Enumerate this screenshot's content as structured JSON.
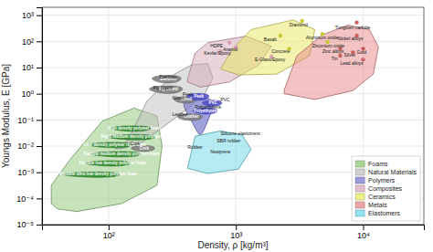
{
  "chart_data": {
    "type": "region_map",
    "xlabel": "Density, ρ [kg/m³]",
    "ylabel": "Youngs Modulus, E [GPa]",
    "log": true,
    "grid": true,
    "legend": "lower right",
    "xlim": [
      30,
      30000
    ],
    "ylim": [
      1e-05,
      2000
    ],
    "xticks": [
      {
        "value": 100,
        "label": "10²"
      },
      {
        "value": 1000,
        "label": "10³"
      },
      {
        "value": 10000,
        "label": "10⁴"
      }
    ],
    "yticks": [
      {
        "value": 1e-05,
        "label": "10⁻⁵"
      },
      {
        "value": 0.0001,
        "label": "10⁻⁴"
      },
      {
        "value": 0.001,
        "label": "10⁻³"
      },
      {
        "value": 0.01,
        "label": "10⁻²"
      },
      {
        "value": 0.1,
        "label": "10⁻¹"
      },
      {
        "value": 1,
        "label": "10⁰"
      },
      {
        "value": 10,
        "label": "10¹"
      },
      {
        "value": 100,
        "label": "10²"
      },
      {
        "value": 1000,
        "label": "10³"
      }
    ],
    "series": [
      {
        "name": "Foams",
        "type": "polygon",
        "color": "#90c878",
        "x": [
          35.481,
          39.811,
          56.234,
          125.89,
          239.88,
          263.03,
          239.88,
          158.49,
          89.125,
          50.119,
          35.481
        ],
        "y": [
          6.3096e-05,
          3.9811e-05,
          3.1623e-05,
          6.3096e-05,
          0.00031623,
          0.01,
          0.14125,
          0.28184,
          0.089125,
          0.0031623,
          0.00031623
        ]
      },
      {
        "name": "Natural Materials",
        "type": "polygon",
        "color": "#c0c0c0",
        "x": [
          112.2,
          141.25,
          199.53,
          316.23,
          446.68,
          602.56,
          660.69,
          562.34,
          398.11,
          263.03,
          177.83,
          125.89,
          112.2
        ],
        "y": [
          0.0079433,
          0.015849,
          0.50119,
          5.0119,
          12.589,
          14.125,
          3.9811,
          0.89125,
          0.22387,
          0.050119,
          0.012589,
          0.0079433,
          0.0079433
        ]
      },
      {
        "name": "Polymers",
        "type": "ellipse",
        "color": "#7878cc",
        "center_x": 524.81,
        "center_y": 0.38019,
        "width": 268.7,
        "height": 0.705
      },
      {
        "name": "Composites",
        "type": "polygon",
        "color": "#d8a8b8",
        "x": [
          416.87,
          478.63,
          602.56,
          1202.3,
          1905.5,
          1513.6,
          891.25,
          524.81,
          416.87
        ],
        "y": [
          3.5481,
          35.481,
          89.125,
          158.49,
          66.069,
          12.589,
          2.8184,
          1.7783,
          2.8184
        ]
      },
      {
        "name": "Ceramics",
        "type": "polygon",
        "color": "#e8e860",
        "x": [
          758.58,
          954.99,
          1318.3,
          2818.4,
          4168.7,
          3801.9,
          2089.3,
          1047.1,
          758.58
        ],
        "y": [
          8.9125,
          56.234,
          281.84,
          660.69,
          281.84,
          28.184,
          5.6234,
          5.2481,
          8.9125
        ]
      },
      {
        "name": "Metals",
        "type": "polygon",
        "color": "#e88888",
        "x": [
          2398.8,
          3020.0,
          4786.3,
          7585.8,
          11220,
          13183,
          12023,
          8317.6,
          4168.7,
          2398.8
        ],
        "y": [
          1.4125,
          28.184,
          177.83,
          416.87,
          281.84,
          60.256,
          5.6234,
          1.3183,
          0.60256,
          1
        ]
      },
      {
        "name": "Elastomers",
        "type": "polygon",
        "color": "#70d8e8",
        "x": [
          416.87,
          478.63,
          758.58,
          1122.0,
          1318.3,
          1047.1,
          602.56,
          416.87
        ],
        "y": [
          0.0014125,
          0.023988,
          0.038019,
          0.026303,
          0.0075858,
          0.0013183,
          0.00089125,
          0.0014125
        ]
      }
    ],
    "ellipse_groups": [
      {
        "color": "#2a8a2a",
        "ellipses": [
          {
            "label": "High density polymer foam",
            "center_x": 158.49,
            "center_y": 0.047863,
            "width": 111.67,
            "height": 0.022237
          },
          {
            "label": "Rigid medium density polymer foam",
            "center_x": 165.96,
            "center_y": 0.022387,
            "width": 133.27,
            "height": 0.010401
          },
          {
            "label": "Low density polymer rigid foam",
            "center_x": 112.2,
            "center_y": 0.01122,
            "width": 84.555,
            "height": 0.0052125
          },
          {
            "label": "Flexible medium density polymer foam",
            "center_x": 125.89,
            "center_y": 0.0050119,
            "width": 107.37,
            "height": 0.0023285
          },
          {
            "label": "Flexible low density polymer foam",
            "center_x": 107.15,
            "center_y": 0.0022387,
            "width": 83.39,
            "height": 0.0010401
          },
          {
            "label": "Flexible ultra low density polymer foam",
            "center_x": 83.176,
            "center_y": 0.00083176,
            "width": 79.349,
            "height": 0.00038641
          }
        ]
      },
      {
        "color": "#808080",
        "ellipses": [
          {
            "label": "Cork",
            "center_x": 190.55,
            "center_y": 0.0083176,
            "width": 79.54,
            "height": 0.0042585
          },
          {
            "label": "Bamboo",
            "center_x": 295.12,
            "center_y": 3.8019,
            "width": 151.1,
            "height": 2.4939
          },
          {
            "label": "Ply board",
            "center_x": 295.12,
            "center_y": 1.5136,
            "width": 172.25,
            "height": 0.9928
          },
          {
            "label": "Wood",
            "center_x": 407.38,
            "center_y": 0.60256,
            "width": 160.49,
            "height": 0.33724
          },
          {
            "label": "Leather",
            "center_x": 446.68,
            "center_y": 0.13183,
            "width": 196.98,
            "height": 0.07378
          }
        ]
      },
      {
        "color": "#5050cc",
        "ellipses": [
          {
            "label": "Peek",
            "center_x": 512.86,
            "center_y": 0.79433,
            "width": 202.04,
            "height": 0.46364
          },
          {
            "label": "PVC",
            "center_x": 660.69,
            "center_y": 0.44668,
            "width": 229.34,
            "height": 0.2287
          },
          {
            "label": "Polyethylene",
            "center_x": 588.84,
            "center_y": 0.22387,
            "width": 259.67,
            "height": 0.11462
          }
        ]
      }
    ],
    "points": {
      "x": [
        3311.3,
        8912.5,
        4786.3,
        8912.5,
        5248.1,
        2238.7,
        2630.3,
        6606.9,
        10000,
        6606.9,
        8317.6,
        1905.5,
        10000,
        891.25,
        1000,
        758.58
      ],
      "y": [
        602.56,
        524.81,
        190.55,
        165.96,
        95.499,
        165.96,
        52.481,
        52.481,
        52.481,
        28.184,
        38.019,
        26.303,
        19.953,
        89.125,
        60.256,
        41.687
      ],
      "colors": [
        "#c8c830",
        "#cc6060",
        "#c8c830",
        "#cc6060",
        "#c8c830",
        "#c8c830",
        "#c8c830",
        "#cc6060",
        "#cc6060",
        "#cc6060",
        "#cc6060",
        "#d4a0b8",
        "#cc6060",
        "#d4a0b8",
        "#d4a0b8",
        "#d4a0b8"
      ]
    },
    "annotations": [
      {
        "text": "Diamond",
        "x": 2630.3,
        "y": 446.68
      },
      {
        "text": "Tungsten carbide",
        "x": 6025.6,
        "y": 354.81
      },
      {
        "text": "Aluminum oxide",
        "x": 3548.1,
        "y": 141.25
      },
      {
        "text": "Nickel alloys",
        "x": 6309.6,
        "y": 125.89
      },
      {
        "text": "Zirconium oxide",
        "x": 3981.1,
        "y": 70.795
      },
      {
        "text": "Zinc alloys",
        "x": 4786.3,
        "y": 41.687
      },
      {
        "text": "Gold",
        "x": 8912.5,
        "y": 39.811
      },
      {
        "text": "Basalt",
        "x": 1659.6,
        "y": 120.23
      },
      {
        "text": "Concrete",
        "x": 1905.5,
        "y": 41.687
      },
      {
        "text": "Tin",
        "x": 5623.4,
        "y": 22.387
      },
      {
        "text": "Silver",
        "x": 7079.5,
        "y": 31.623
      },
      {
        "text": "E-Glass/Epoxy",
        "x": 1412.5,
        "y": 20.893
      },
      {
        "text": "Lead alloys",
        "x": 6606.9,
        "y": 15.136
      },
      {
        "text": "HDPE",
        "x": 630.96,
        "y": 70.795
      },
      {
        "text": "Aramid",
        "x": 794.33,
        "y": 50.119
      },
      {
        "text": "Kevlar/Epoxy",
        "x": 562.34,
        "y": 35.481
      },
      {
        "text": "Bamboo",
        "x": 251.19,
        "y": 4.4668
      },
      {
        "text": "Ply board",
        "x": 223.87,
        "y": 1.6596
      },
      {
        "text": "Wood",
        "x": 316.23,
        "y": 0.70795
      },
      {
        "text": "Peek",
        "x": 380.19,
        "y": 0.95499
      },
      {
        "text": "PVC",
        "x": 758.58,
        "y": 0.60256
      },
      {
        "text": "Polyethylene",
        "x": 478.63,
        "y": 0.31623
      },
      {
        "text": "Leather",
        "x": 316.23,
        "y": 0.16596
      },
      {
        "text": "Cork",
        "x": 147.91,
        "y": 0.012589
      },
      {
        "text": "Silicone elastomers",
        "x": 758.58,
        "y": 0.031623
      },
      {
        "text": "SBR rubber",
        "x": 707.95,
        "y": 0.015849
      },
      {
        "text": "Rubber",
        "x": 416.87,
        "y": 0.0095499
      },
      {
        "text": "Neoprene",
        "x": 630.96,
        "y": 0.0060256
      }
    ]
  }
}
